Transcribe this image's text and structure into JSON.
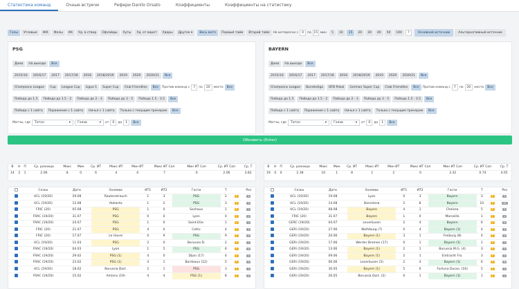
{
  "tabs": [
    "Статистика команд",
    "Очные встречи",
    "Рефери Danilo Orsato",
    "Коэффициенты",
    "Коэффициенты на статистику"
  ],
  "filters": {
    "stats": [
      "Голы",
      "Угловые",
      "ЖК",
      "Фолы",
      "КК",
      "Уд. в створ",
      "Офсайды",
      "Ауты",
      "Уд. от ворот",
      "Удары"
    ],
    "other": "Другое ▾",
    "periods": [
      "Весь матч",
      "Первый тайм",
      "Второй тайм"
    ],
    "odds_label": "Не интересно с",
    "odds_from": "0",
    "odds_to_label": "по",
    "odds_to": "15",
    "odds_unit": "мин",
    "counts": [
      "5",
      "10",
      "15",
      "20",
      "30",
      "40",
      "50",
      "100"
    ],
    "count_custom": "?",
    "sources": [
      "Основной источник",
      "Альтернативный источник"
    ]
  },
  "teams": [
    {
      "name": "PSG",
      "venue": [
        "Дома",
        "На выезде",
        "Все"
      ],
      "seasons": [
        "2015/16",
        "2016/17",
        "2017",
        "2017/18",
        "2018",
        "2018/2019",
        "2019",
        "2020",
        "2020/21",
        "Все"
      ],
      "tournaments": [
        "Champions League",
        "Cup",
        "League Cup",
        "Ligue 1",
        "Super Cup",
        "Club Friendlies",
        "Все"
      ],
      "opp_label": "Против команд с",
      "opp_from": "7",
      "opp_to_label": "по",
      "opp_to": "20",
      "opp_unit": "место",
      "win_rows": [
        [
          "Победа до 1.5",
          "Победа до 1.5 - 2",
          "Победа до 2 - 3",
          "Победа до 3 - 5",
          "Победа 1.5 - 3.5",
          "Все"
        ],
        [
          "Победа с 1 сайта",
          "Поражение с 1 сайта",
          "Ничья с 1 сайта",
          "Только с текущим тренером",
          "Все"
        ]
      ],
      "match_label": "Матчи, где",
      "sel1": "Тотал",
      "sel2": "Голов",
      "range_from_label": "от",
      "range_from": "0",
      "range_to_label": "до",
      "range_to": "1",
      "range_btn": "Все"
    },
    {
      "name": "BAYERN",
      "venue": [
        "Дома",
        "На выезде",
        "Все"
      ],
      "seasons": [
        "2015/16",
        "2016/17",
        "2017",
        "2017/18",
        "2018",
        "2018/2019",
        "2019",
        "2020",
        "2020/21",
        "Все"
      ],
      "tournaments": [
        "Champions League",
        "Bundesliga",
        "DFB Pokal",
        "German Super Cup",
        "Club Friendlies",
        "Все"
      ],
      "opp_label": "Против команд с",
      "opp_from": "7",
      "opp_to_label": "по",
      "opp_to": "20",
      "opp_unit": "место",
      "win_rows": [
        [
          "Победа до 1.5",
          "Победа до 1.5 - 2",
          "Победа до 2 - 3",
          "Победа до 3 - 5",
          "Победа 1.5 - 3.5",
          "Все"
        ],
        [
          "Победа с 1 сайта",
          "Поражение с 1 сайта",
          "Ничья с 1 сайта",
          "Только с текущим тренером",
          "Все"
        ]
      ],
      "match_label": "Матчи, где",
      "sel1": "Тотал",
      "sel2": "Голов",
      "range_from_label": "от",
      "range_from": "0",
      "range_to_label": "до",
      "range_to": "1",
      "range_btn": "Все"
    }
  ],
  "refresh_label": "Обновить (Enter)",
  "summary_headers": [
    "В",
    "Н",
    "П",
    "Ср. разница",
    "Макс",
    "Мин",
    "Ср. ИТ",
    "Макс ИТ",
    "Мин ИТ",
    "Макс ИТ Соп",
    "Мин ИТ Соп",
    "Ср. ИТ Соп",
    "Ср. Т"
  ],
  "summary": [
    [
      "14",
      "2",
      "1",
      "2.06",
      "8",
      "0",
      "6",
      "4",
      "0",
      "7",
      "0",
      "2.06",
      "3.82"
    ],
    [
      "19",
      "0",
      "0",
      "2.38",
      "10",
      "1",
      "8",
      "1",
      "2",
      "0",
      "3.32",
      "0.74",
      "4.05"
    ]
  ],
  "match_headers": [
    "",
    "Сезон",
    "Дата",
    "Хозяева",
    "ИТ1",
    "ИТ2",
    "Гости",
    "Т",
    "",
    "Рез"
  ],
  "matches": [
    [
      [
        "UCL (19/20)",
        "29.08",
        "Rautenstrauch",
        "1",
        "3",
        "PSG",
        "2",
        "g",
        "4"
      ],
      [
        "UCL (19/20)",
        "12.08",
        "Atalanta",
        "1",
        "2",
        "PSG",
        "3",
        "g",
        "3"
      ],
      [
        "FRIC (20)",
        "05.08",
        "PSG",
        "1",
        "0",
        "Sochaux",
        "1",
        "y",
        "1"
      ],
      [
        "FRAC (19/20)",
        "31.07",
        "PSG",
        "0",
        "0",
        "Lyon",
        "0",
        "y",
        "0"
      ],
      [
        "FRAC (19/20)",
        "24.07",
        "PSG",
        "1",
        "0",
        "Saint-Etie.",
        "1",
        "y",
        "1"
      ],
      [
        "FRIC (20)",
        "21.07",
        "PSG",
        "4",
        "0",
        "Celtic",
        "4",
        "y",
        "4"
      ],
      [
        "FRIC (20)",
        "17.07",
        "Le Havre",
        "0",
        "9",
        "PSG",
        "9",
        "g",
        "9"
      ],
      [
        "UCL (19/20)",
        "11.03",
        "PSG",
        "2",
        "0",
        "Borussia D.",
        "2",
        "y",
        "2"
      ],
      [
        "FRAC (19/20)",
        "04.03",
        "Lyon",
        "1",
        "5",
        "PSG",
        "6",
        "g",
        "6"
      ],
      [
        "FRAC (19/20)",
        "29.02",
        "PSG (1)",
        "4",
        "0",
        "Dijon (17)",
        "4",
        "y",
        "4"
      ],
      [
        "FRAC (19/20)",
        "23.02",
        "PSG (1)",
        "4",
        "1",
        "Bordeaux (12)",
        "5",
        "y",
        "5"
      ],
      [
        "UCL (19/20)",
        "18.02",
        "Borussia Dort.",
        "2",
        "1",
        "PSG",
        "3",
        "r",
        "3"
      ],
      [
        "FRAC (19/20)",
        "15.02",
        "Amiens (19)",
        "4",
        "4",
        "PSG (1)",
        "8",
        "y",
        "8"
      ]
    ],
    [
      [
        "UCL (19/20)",
        "19.08",
        "Lyon",
        "0",
        "3",
        "Bayern",
        "3",
        "g",
        "3"
      ],
      [
        "UCL (19/20)",
        "14.08",
        "Barcelona",
        "2",
        "8",
        "Bayern",
        "10",
        "g",
        "10"
      ],
      [
        "UCL (19/20)",
        "08.08",
        "Bayern",
        "4",
        "1",
        "Chelsea",
        "5",
        "y",
        "5"
      ],
      [
        "FRIC (20)",
        "31.07",
        "Bayern",
        "1",
        "0",
        "Marseille",
        "1",
        "y",
        "1"
      ],
      [
        "GERC (19/20)",
        "04.07",
        "Leverkusen",
        "2",
        "4",
        "Bayern",
        "6",
        "g",
        "6"
      ],
      [
        "GERI (19/20)",
        "27.06",
        "Wolfsburg (7)",
        "0",
        "4",
        "Bayern (1)",
        "4",
        "g",
        "4"
      ],
      [
        "GERI (19/20)",
        "20.06",
        "Bayern (1)",
        "3",
        "1",
        "Freiburg (8)",
        "4",
        "y",
        "4"
      ],
      [
        "GERI (19/20)",
        "17.06",
        "Werder Bremen (17)",
        "0",
        "1",
        "Bayern (1)",
        "1",
        "g",
        "1"
      ],
      [
        "GERI (19/20)",
        "13.06",
        "Bayern (1)",
        "2",
        "1",
        "Borussia M.G. (4)",
        "3",
        "y",
        "3"
      ],
      [
        "GERI (19/20)",
        "09.06",
        "Bayern (1)",
        "2",
        "1",
        "Eintracht Fra.",
        "3",
        "y",
        "3"
      ],
      [
        "GERI (19/20)",
        "06.06",
        "Leverkusen (5)",
        "2",
        "4",
        "Bayern (1)",
        "6",
        "g",
        "6"
      ],
      [
        "GERI (19/20)",
        "30.05",
        "Bayern (1)",
        "5",
        "0",
        "Fortuna Dusso. (16)",
        "5",
        "y",
        "5"
      ],
      [
        "GERI (19/20)",
        "26.05",
        "Borussia Dort. (2)",
        "0",
        "1",
        "Bayern (1)",
        "1",
        "g",
        "1"
      ]
    ]
  ]
}
